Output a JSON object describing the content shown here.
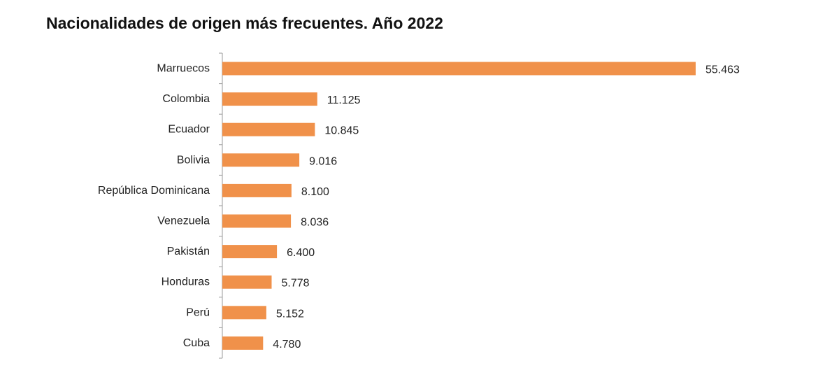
{
  "chart_data": {
    "type": "bar",
    "orientation": "horizontal",
    "title": "Nacionalidades de origen más frecuentes. Año 2022",
    "categories": [
      "Marruecos",
      "Colombia",
      "Ecuador",
      "Bolivia",
      "República Dominicana",
      "Venezuela",
      "Pakistán",
      "Honduras",
      "Perú",
      "Cuba"
    ],
    "values": [
      55463,
      11125,
      10845,
      9016,
      8100,
      8036,
      6400,
      5778,
      5152,
      4780
    ],
    "value_labels": [
      "55.463",
      "11.125",
      "10.845",
      "9.016",
      "8.100",
      "8.036",
      "6.400",
      "5.778",
      "5.152",
      "4.780"
    ],
    "xlim": [
      0,
      55463
    ],
    "grid": false,
    "legend": "none",
    "bar_color": "#f0914a",
    "axis_color": "#9a9a9a"
  }
}
